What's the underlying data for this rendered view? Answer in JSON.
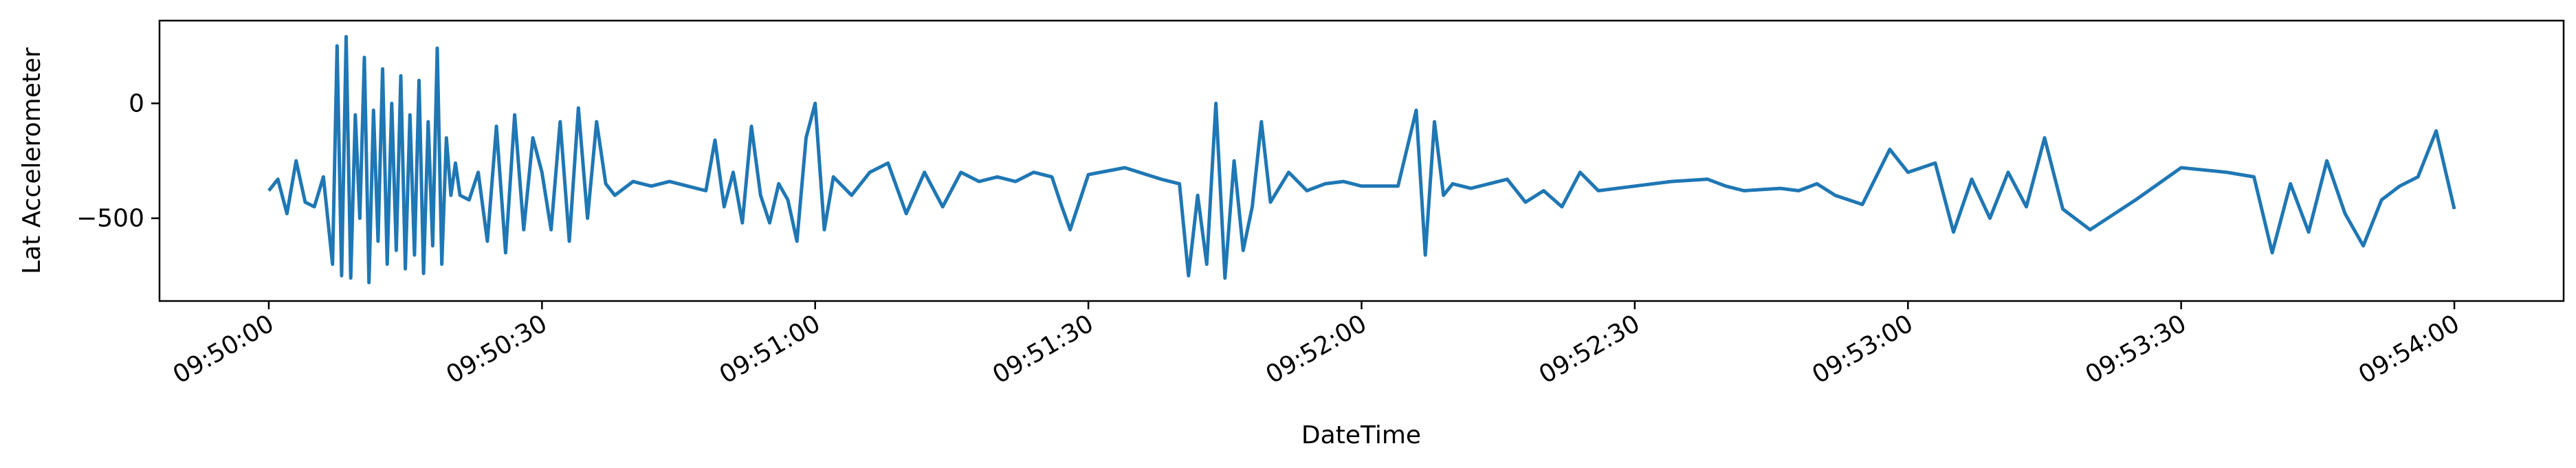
{
  "chart_data": {
    "type": "line",
    "title": "",
    "xlabel": "DateTime",
    "ylabel": "Lat Accelerometer",
    "x_start": "09:50:00",
    "x_end": "09:54:00",
    "x_ticks": [
      "09:50:00",
      "09:50:30",
      "09:51:00",
      "09:51:30",
      "09:52:00",
      "09:52:30",
      "09:53:00",
      "09:53:30",
      "09:54:00"
    ],
    "y_ticks": [
      0,
      -500
    ],
    "xlim": [
      "09:49:48",
      "09:54:12"
    ],
    "ylim": [
      -860,
      360
    ],
    "grid": false,
    "legend": "none",
    "line_color": "#1f77b4",
    "series": [
      {
        "x": [
          "09:50:00",
          "09:50:01",
          "09:50:02",
          "09:50:03",
          "09:50:04",
          "09:50:05",
          "09:50:06",
          "09:50:07",
          "09:50:07.5",
          "09:50:08",
          "09:50:08.5",
          "09:50:09",
          "09:50:09.5",
          "09:50:10",
          "09:50:10.5",
          "09:50:11",
          "09:50:11.5",
          "09:50:12",
          "09:50:12.5",
          "09:50:13",
          "09:50:13.5",
          "09:50:14",
          "09:50:14.5",
          "09:50:15",
          "09:50:15.5",
          "09:50:16",
          "09:50:16.5",
          "09:50:17",
          "09:50:17.5",
          "09:50:18",
          "09:50:18.5",
          "09:50:19",
          "09:50:19.5",
          "09:50:20",
          "09:50:20.5",
          "09:50:21",
          "09:50:22",
          "09:50:23",
          "09:50:24",
          "09:50:25",
          "09:50:26",
          "09:50:27",
          "09:50:28",
          "09:50:29",
          "09:50:30",
          "09:50:31",
          "09:50:32",
          "09:50:33",
          "09:50:34",
          "09:50:35",
          "09:50:36",
          "09:50:37",
          "09:50:38",
          "09:50:40",
          "09:50:42",
          "09:50:44",
          "09:50:46",
          "09:50:48",
          "09:50:49",
          "09:50:50",
          "09:50:51",
          "09:50:52",
          "09:50:53",
          "09:50:54",
          "09:50:55",
          "09:50:56",
          "09:50:57",
          "09:50:58",
          "09:50:59",
          "09:51:00",
          "09:51:01",
          "09:51:02",
          "09:51:04",
          "09:51:06",
          "09:51:08",
          "09:51:10",
          "09:51:12",
          "09:51:14",
          "09:51:16",
          "09:51:18",
          "09:51:20",
          "09:51:22",
          "09:51:24",
          "09:51:26",
          "09:51:27",
          "09:51:28",
          "09:51:30",
          "09:51:34",
          "09:51:38",
          "09:51:40",
          "09:51:41",
          "09:51:42",
          "09:51:43",
          "09:51:44",
          "09:51:45",
          "09:51:46",
          "09:51:47",
          "09:51:48",
          "09:51:49",
          "09:51:50",
          "09:51:52",
          "09:51:54",
          "09:51:56",
          "09:51:58",
          "09:52:00",
          "09:52:04",
          "09:52:06",
          "09:52:07",
          "09:52:08",
          "09:52:09",
          "09:52:10",
          "09:52:12",
          "09:52:14",
          "09:52:16",
          "09:52:18",
          "09:52:20",
          "09:52:22",
          "09:52:24",
          "09:52:26",
          "09:52:30",
          "09:52:34",
          "09:52:38",
          "09:52:40",
          "09:52:42",
          "09:52:46",
          "09:52:48",
          "09:52:50",
          "09:52:52",
          "09:52:55",
          "09:52:58",
          "09:53:00",
          "09:53:03",
          "09:53:05",
          "09:53:07",
          "09:53:09",
          "09:53:11",
          "09:53:13",
          "09:53:15",
          "09:53:17",
          "09:53:20",
          "09:53:25",
          "09:53:30",
          "09:53:35",
          "09:53:38",
          "09:53:40",
          "09:53:42",
          "09:53:44",
          "09:53:46",
          "09:53:48",
          "09:53:50",
          "09:53:52",
          "09:53:54",
          "09:53:56",
          "09:53:58",
          "09:54:00"
        ],
        "values": [
          -380,
          -330,
          -480,
          -250,
          -430,
          -450,
          -320,
          -700,
          250,
          -750,
          290,
          -760,
          -50,
          -500,
          200,
          -780,
          -30,
          -600,
          150,
          -700,
          0,
          -640,
          120,
          -720,
          -50,
          -660,
          100,
          -740,
          -80,
          -620,
          240,
          -700,
          -150,
          -400,
          -260,
          -400,
          -420,
          -300,
          -600,
          -100,
          -650,
          -50,
          -550,
          -150,
          -300,
          -550,
          -80,
          -600,
          -20,
          -500,
          -80,
          -350,
          -400,
          -340,
          -360,
          -340,
          -360,
          -380,
          -160,
          -450,
          -300,
          -520,
          -100,
          -400,
          -520,
          -350,
          -420,
          -600,
          -150,
          0,
          -550,
          -320,
          -400,
          -300,
          -260,
          -480,
          -300,
          -450,
          -300,
          -340,
          -320,
          -340,
          -300,
          -320,
          -440,
          -550,
          -310,
          -280,
          -330,
          -350,
          -750,
          -400,
          -700,
          0,
          -760,
          -250,
          -640,
          -450,
          -80,
          -430,
          -300,
          -380,
          -350,
          -340,
          -360,
          -360,
          -30,
          -660,
          -80,
          -400,
          -350,
          -370,
          -350,
          -330,
          -430,
          -380,
          -450,
          -300,
          -380,
          -360,
          -340,
          -330,
          -360,
          -380,
          -370,
          -380,
          -350,
          -400,
          -440,
          -200,
          -300,
          -260,
          -560,
          -330,
          -500,
          -300,
          -450,
          -150,
          -460,
          -550,
          -420,
          -280,
          -300,
          -320,
          -650,
          -350,
          -560,
          -250,
          -480,
          -620,
          -420,
          -360,
          -320,
          -120,
          -460
        ]
      }
    ]
  }
}
